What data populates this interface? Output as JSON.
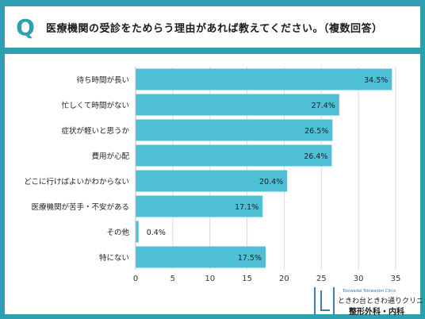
{
  "header": {
    "q_mark": "Q",
    "title": "医療機関の受診をためらう理由があれば教えてください。（複数回答）"
  },
  "chart_data": {
    "type": "bar",
    "orientation": "horizontal",
    "categories": [
      "待ち時間が長い",
      "忙しくて時間がない",
      "症状が軽いと思うか",
      "費用が心配",
      "どこに行けばよいかわからない",
      "医療機関が苦手・不安がある",
      "その他",
      "特にない"
    ],
    "values": [
      34.5,
      27.4,
      26.5,
      26.4,
      20.4,
      17.1,
      0.4,
      17.5
    ],
    "value_labels": [
      "34.5%",
      "27.4%",
      "26.5%",
      "26.4%",
      "20.4%",
      "17.1%",
      "0.4%",
      "17.5%"
    ],
    "x_ticks": [
      "0",
      "5",
      "10",
      "15",
      "20",
      "25",
      "30",
      "35"
    ],
    "xlim": [
      0,
      35
    ],
    "bar_color": "#4ebfd4",
    "grid": true
  },
  "logo": {
    "en": "Tokiwadai Tokiwadori Clinic",
    "name": "ときわ台ときわ通りクリニック",
    "dept": "整形外科・内科",
    "icon": "clinic-logo-icon"
  }
}
